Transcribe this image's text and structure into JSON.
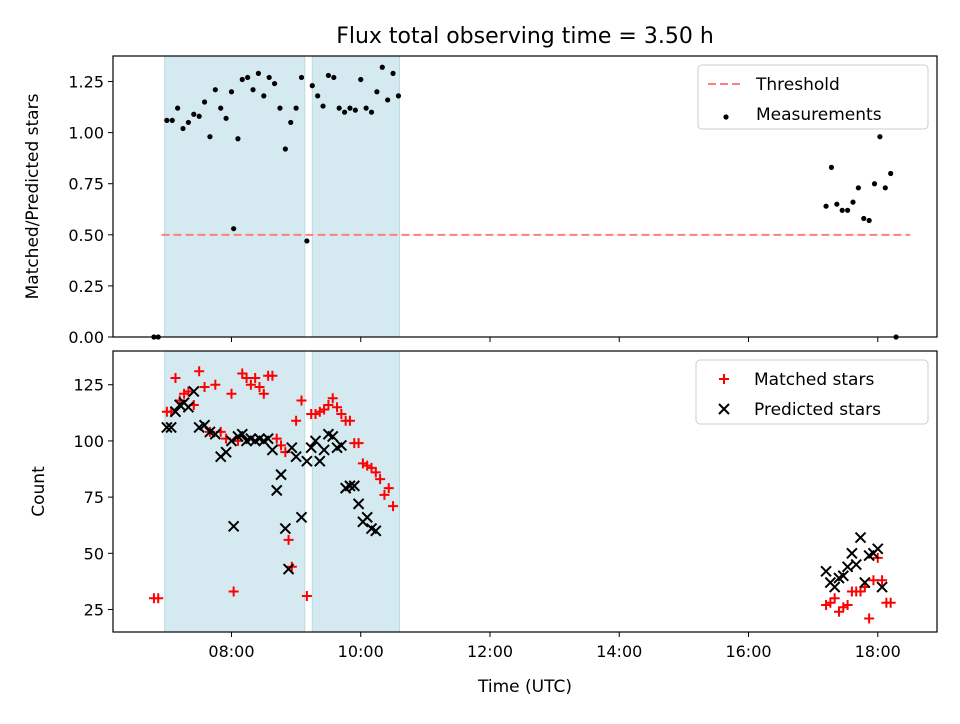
{
  "chart_data": [
    {
      "type": "scatter",
      "title": "Flux total observing time = 3.50 h",
      "xlabel": "",
      "ylabel": "Matched/Predicted stars",
      "xlim": [
        "06:10",
        "18:55"
      ],
      "ylim": [
        0,
        1.375
      ],
      "xticks": [
        "08:00",
        "10:00",
        "12:00",
        "14:00",
        "16:00",
        "18:00"
      ],
      "yticks": [
        "0.00",
        "0.25",
        "0.50",
        "0.75",
        "1.00",
        "1.25"
      ],
      "legend_position": "top-right",
      "shaded_intervals": [
        [
          "06:58",
          "09:08"
        ],
        [
          "09:15",
          "10:36"
        ]
      ],
      "shade_color": "#d5eaf0",
      "series": [
        {
          "name": "Threshold",
          "kind": "dashed-line",
          "color": "#ff7f7f",
          "points": [
            [
              "06:55",
              0.5
            ],
            [
              "18:30",
              0.5
            ]
          ]
        },
        {
          "name": "Measurements",
          "kind": "dot",
          "color": "#000000",
          "points": [
            [
              "06:48",
              0.0
            ],
            [
              "06:52",
              0.0
            ],
            [
              "07:00",
              1.06
            ],
            [
              "07:05",
              1.06
            ],
            [
              "07:10",
              1.12
            ],
            [
              "07:15",
              1.02
            ],
            [
              "07:20",
              1.05
            ],
            [
              "07:25",
              1.09
            ],
            [
              "07:30",
              1.08
            ],
            [
              "07:35",
              1.15
            ],
            [
              "07:40",
              0.98
            ],
            [
              "07:45",
              1.21
            ],
            [
              "07:50",
              1.12
            ],
            [
              "07:55",
              1.07
            ],
            [
              "08:00",
              1.2
            ],
            [
              "08:02",
              0.53
            ],
            [
              "08:06",
              0.97
            ],
            [
              "08:10",
              1.26
            ],
            [
              "08:15",
              1.27
            ],
            [
              "08:20",
              1.21
            ],
            [
              "08:25",
              1.29
            ],
            [
              "08:30",
              1.18
            ],
            [
              "08:35",
              1.27
            ],
            [
              "08:40",
              1.24
            ],
            [
              "08:45",
              1.12
            ],
            [
              "08:50",
              0.92
            ],
            [
              "08:55",
              1.05
            ],
            [
              "09:00",
              1.12
            ],
            [
              "09:05",
              1.27
            ],
            [
              "09:10",
              0.47
            ],
            [
              "09:15",
              1.23
            ],
            [
              "09:20",
              1.18
            ],
            [
              "09:25",
              1.13
            ],
            [
              "09:30",
              1.28
            ],
            [
              "09:35",
              1.27
            ],
            [
              "09:40",
              1.12
            ],
            [
              "09:45",
              1.1
            ],
            [
              "09:50",
              1.12
            ],
            [
              "09:55",
              1.11
            ],
            [
              "10:00",
              1.26
            ],
            [
              "10:05",
              1.12
            ],
            [
              "10:10",
              1.1
            ],
            [
              "10:15",
              1.2
            ],
            [
              "10:20",
              1.32
            ],
            [
              "10:25",
              1.16
            ],
            [
              "10:30",
              1.29
            ],
            [
              "10:35",
              1.18
            ],
            [
              "17:12",
              0.64
            ],
            [
              "17:17",
              0.83
            ],
            [
              "17:22",
              0.65
            ],
            [
              "17:27",
              0.62
            ],
            [
              "17:32",
              0.62
            ],
            [
              "17:37",
              0.66
            ],
            [
              "17:42",
              0.73
            ],
            [
              "17:47",
              0.58
            ],
            [
              "17:52",
              0.57
            ],
            [
              "17:57",
              0.75
            ],
            [
              "18:02",
              0.98
            ],
            [
              "18:07",
              0.73
            ],
            [
              "18:12",
              0.8
            ],
            [
              "18:17",
              0.0
            ]
          ]
        }
      ]
    },
    {
      "type": "scatter",
      "title": "",
      "xlabel": "Time (UTC)",
      "ylabel": "Count",
      "xlim": [
        "06:10",
        "18:55"
      ],
      "ylim": [
        15,
        140
      ],
      "xticks": [
        "08:00",
        "10:00",
        "12:00",
        "14:00",
        "16:00",
        "18:00"
      ],
      "yticks": [
        "25",
        "50",
        "75",
        "100",
        "125"
      ],
      "legend_position": "top-right",
      "shaded_intervals": [
        [
          "06:58",
          "09:08"
        ],
        [
          "09:15",
          "10:36"
        ]
      ],
      "shade_color": "#d5eaf0",
      "series": [
        {
          "name": "Matched stars",
          "kind": "plus",
          "color": "#ff0000",
          "points": [
            [
              "06:48",
              30
            ],
            [
              "06:52",
              30
            ],
            [
              "07:00",
              113
            ],
            [
              "07:04",
              113
            ],
            [
              "07:08",
              128
            ],
            [
              "07:12",
              118
            ],
            [
              "07:16",
              121
            ],
            [
              "07:20",
              122
            ],
            [
              "07:25",
              116
            ],
            [
              "07:30",
              131
            ],
            [
              "07:35",
              124
            ],
            [
              "07:40",
              104
            ],
            [
              "07:45",
              125
            ],
            [
              "07:50",
              104
            ],
            [
              "07:55",
              101
            ],
            [
              "08:00",
              121
            ],
            [
              "08:02",
              33
            ],
            [
              "08:06",
              100
            ],
            [
              "08:10",
              130
            ],
            [
              "08:14",
              128
            ],
            [
              "08:18",
              125
            ],
            [
              "08:22",
              128
            ],
            [
              "08:26",
              124
            ],
            [
              "08:30",
              121
            ],
            [
              "08:34",
              129
            ],
            [
              "08:38",
              129
            ],
            [
              "08:42",
              101
            ],
            [
              "08:46",
              98
            ],
            [
              "08:50",
              95
            ],
            [
              "08:53",
              56
            ],
            [
              "08:56",
              44
            ],
            [
              "09:00",
              109
            ],
            [
              "09:05",
              118
            ],
            [
              "09:10",
              31
            ],
            [
              "09:14",
              112
            ],
            [
              "09:18",
              112
            ],
            [
              "09:22",
              113
            ],
            [
              "09:26",
              114
            ],
            [
              "09:30",
              116
            ],
            [
              "09:34",
              119
            ],
            [
              "09:38",
              115
            ],
            [
              "09:42",
              112
            ],
            [
              "09:46",
              109
            ],
            [
              "09:50",
              109
            ],
            [
              "09:54",
              99
            ],
            [
              "09:58",
              99
            ],
            [
              "10:02",
              90
            ],
            [
              "10:06",
              89
            ],
            [
              "10:10",
              88
            ],
            [
              "10:14",
              86
            ],
            [
              "10:18",
              83
            ],
            [
              "10:22",
              76
            ],
            [
              "10:26",
              79
            ],
            [
              "10:30",
              71
            ],
            [
              "17:12",
              27
            ],
            [
              "17:16",
              28
            ],
            [
              "17:20",
              30
            ],
            [
              "17:24",
              24
            ],
            [
              "17:28",
              26
            ],
            [
              "17:32",
              27
            ],
            [
              "17:36",
              33
            ],
            [
              "17:40",
              33
            ],
            [
              "17:44",
              33
            ],
            [
              "17:48",
              35
            ],
            [
              "17:52",
              21
            ],
            [
              "17:56",
              38
            ],
            [
              "18:00",
              48
            ],
            [
              "18:04",
              38
            ],
            [
              "18:08",
              28
            ],
            [
              "18:12",
              28
            ]
          ]
        },
        {
          "name": "Predicted stars",
          "kind": "cross",
          "color": "#000000",
          "points": [
            [
              "07:00",
              106
            ],
            [
              "07:04",
              106
            ],
            [
              "07:08",
              113
            ],
            [
              "07:12",
              116
            ],
            [
              "07:16",
              117
            ],
            [
              "07:20",
              115
            ],
            [
              "07:25",
              122
            ],
            [
              "07:30",
              106
            ],
            [
              "07:35",
              107
            ],
            [
              "07:40",
              104
            ],
            [
              "07:45",
              103
            ],
            [
              "07:50",
              93
            ],
            [
              "07:55",
              95
            ],
            [
              "08:00",
              100
            ],
            [
              "08:02",
              62
            ],
            [
              "08:06",
              102
            ],
            [
              "08:10",
              103
            ],
            [
              "08:14",
              100
            ],
            [
              "08:18",
              101
            ],
            [
              "08:22",
              100
            ],
            [
              "08:26",
              101
            ],
            [
              "08:30",
              100
            ],
            [
              "08:34",
              101
            ],
            [
              "08:38",
              96
            ],
            [
              "08:42",
              78
            ],
            [
              "08:46",
              85
            ],
            [
              "08:50",
              61
            ],
            [
              "08:53",
              43
            ],
            [
              "08:56",
              97
            ],
            [
              "09:00",
              93
            ],
            [
              "09:05",
              66
            ],
            [
              "09:10",
              91
            ],
            [
              "09:14",
              97
            ],
            [
              "09:18",
              100
            ],
            [
              "09:22",
              91
            ],
            [
              "09:26",
              96
            ],
            [
              "09:30",
              103
            ],
            [
              "09:34",
              102
            ],
            [
              "09:38",
              97
            ],
            [
              "09:42",
              98
            ],
            [
              "09:46",
              79
            ],
            [
              "09:50",
              80
            ],
            [
              "09:54",
              80
            ],
            [
              "09:58",
              72
            ],
            [
              "10:02",
              64
            ],
            [
              "10:06",
              66
            ],
            [
              "10:10",
              61
            ],
            [
              "10:14",
              60
            ],
            [
              "17:12",
              42
            ],
            [
              "17:16",
              37
            ],
            [
              "17:20",
              35
            ],
            [
              "17:24",
              39
            ],
            [
              "17:28",
              40
            ],
            [
              "17:32",
              44
            ],
            [
              "17:36",
              50
            ],
            [
              "17:40",
              45
            ],
            [
              "17:44",
              57
            ],
            [
              "17:48",
              37
            ],
            [
              "17:52",
              49
            ],
            [
              "17:56",
              50
            ],
            [
              "18:00",
              52
            ],
            [
              "18:04",
              35
            ]
          ]
        }
      ]
    }
  ]
}
